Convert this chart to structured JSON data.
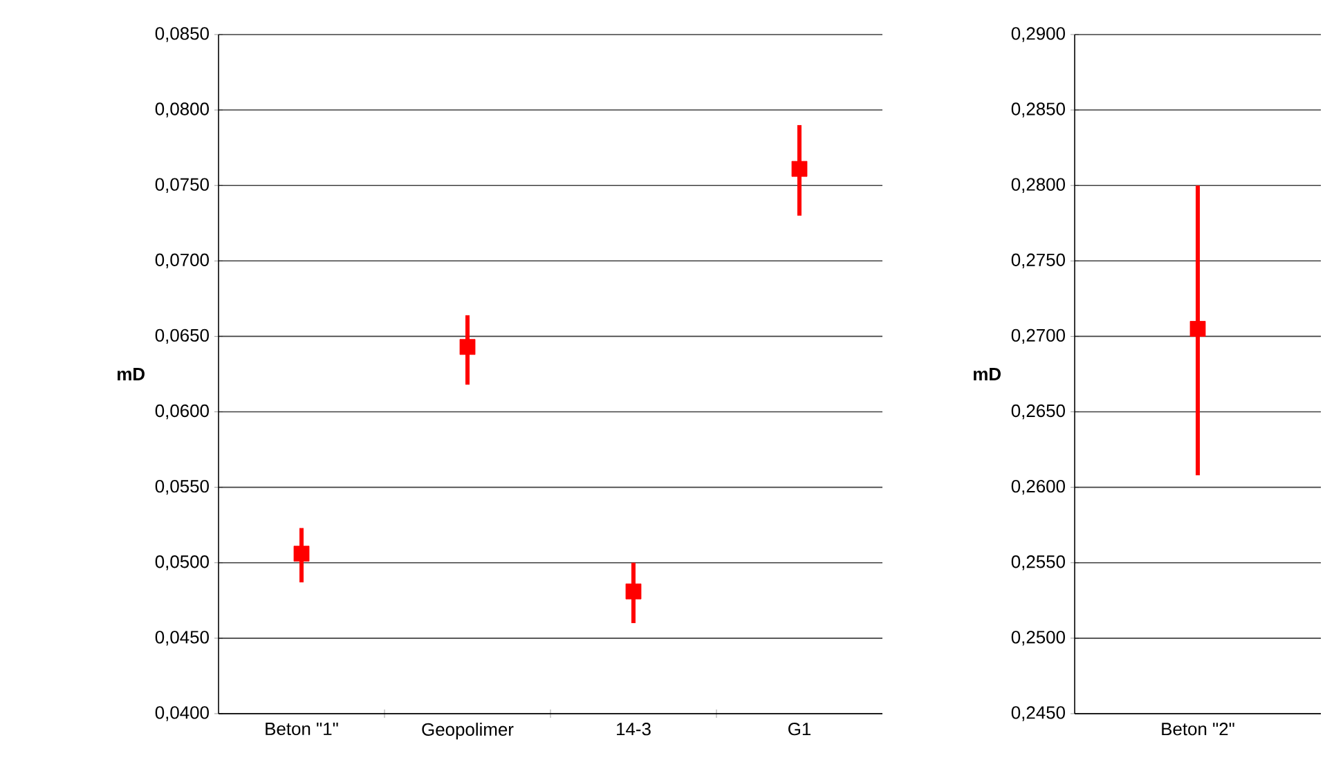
{
  "chart_data": [
    {
      "type": "scatter",
      "ylabel": "mD",
      "categories": [
        "Beton \"1\"",
        "Geopolimer",
        "14-3",
        "G1"
      ],
      "values": [
        0.0506,
        0.0643,
        0.0481,
        0.0761
      ],
      "errors": [
        [
          0.0487,
          0.0523
        ],
        [
          0.0618,
          0.0664
        ],
        [
          0.046,
          0.05
        ],
        [
          0.073,
          0.079
        ]
      ],
      "color": "#ff0000",
      "marker": "square",
      "grid": "y",
      "ylim": [
        0.04,
        0.085
      ],
      "yticks": [
        {
          "value": 0.04,
          "label": "0,0400"
        },
        {
          "value": 0.045,
          "label": "0,0450"
        },
        {
          "value": 0.05,
          "label": "0,0500"
        },
        {
          "value": 0.055,
          "label": "0,0550"
        },
        {
          "value": 0.06,
          "label": "0,0600"
        },
        {
          "value": 0.065,
          "label": "0,0650"
        },
        {
          "value": 0.07,
          "label": "0,0700"
        },
        {
          "value": 0.075,
          "label": "0,0750"
        },
        {
          "value": 0.08,
          "label": "0,0800"
        },
        {
          "value": 0.085,
          "label": "0,0850"
        }
      ]
    },
    {
      "type": "scatter",
      "ylabel": "mD",
      "categories": [
        "Beton \"2\""
      ],
      "values": [
        0.2705
      ],
      "errors": [
        [
          0.2608,
          0.28
        ]
      ],
      "color": "#ff0000",
      "marker": "square",
      "grid": "y",
      "ylim": [
        0.245,
        0.29
      ],
      "yticks": [
        {
          "value": 0.245,
          "label": "0,2450"
        },
        {
          "value": 0.25,
          "label": "0,2500"
        },
        {
          "value": 0.255,
          "label": "0,2550"
        },
        {
          "value": 0.26,
          "label": "0,2600"
        },
        {
          "value": 0.265,
          "label": "0,2650"
        },
        {
          "value": 0.27,
          "label": "0,2700"
        },
        {
          "value": 0.275,
          "label": "0,2750"
        },
        {
          "value": 0.28,
          "label": "0,2800"
        },
        {
          "value": 0.285,
          "label": "0,2850"
        },
        {
          "value": 0.29,
          "label": "0,2900"
        }
      ]
    }
  ]
}
